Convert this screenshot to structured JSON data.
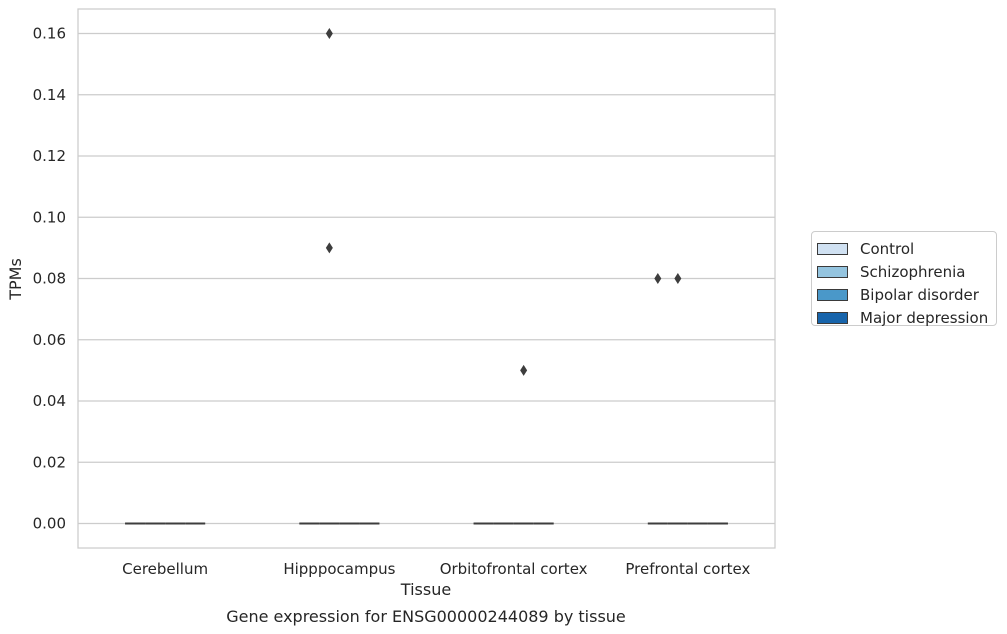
{
  "chart_data": {
    "type": "box",
    "title": "Gene expression for ENSG00000244089 by tissue",
    "xlabel": "Tissue",
    "ylabel": "TPMs",
    "ylim": [
      -0.008,
      0.168
    ],
    "yticks": [
      0.0,
      0.02,
      0.04,
      0.06,
      0.08,
      0.1,
      0.12,
      0.14,
      0.16
    ],
    "ytick_labels": [
      "0.00",
      "0.02",
      "0.04",
      "0.06",
      "0.08",
      "0.10",
      "0.12",
      "0.14",
      "0.16"
    ],
    "categories": [
      "Cerebellum",
      "Hipppocampus",
      "Orbitofrontal cortex",
      "Prefrontal cortex"
    ],
    "grid": true,
    "legend_position": "right",
    "series": [
      {
        "name": "Control",
        "color": "#d0e1f2",
        "boxes": [
          {
            "median": 0,
            "outliers": []
          },
          {
            "median": 0,
            "outliers": []
          },
          {
            "median": 0,
            "outliers": []
          },
          {
            "median": 0,
            "outliers": [
              0.08
            ]
          }
        ]
      },
      {
        "name": "Schizophrenia",
        "color": "#94c4df",
        "boxes": [
          {
            "median": 0,
            "outliers": []
          },
          {
            "median": 0,
            "outliers": [
              0.16,
              0.09
            ]
          },
          {
            "median": 0,
            "outliers": []
          },
          {
            "median": 0,
            "outliers": [
              0.08
            ]
          }
        ]
      },
      {
        "name": "Bipolar disorder",
        "color": "#4a98c9",
        "boxes": [
          {
            "median": 0,
            "outliers": []
          },
          {
            "median": 0,
            "outliers": []
          },
          {
            "median": 0,
            "outliers": [
              0.05
            ]
          },
          {
            "median": 0,
            "outliers": []
          }
        ]
      },
      {
        "name": "Major depression",
        "color": "#1764ab",
        "boxes": [
          {
            "median": 0,
            "outliers": []
          },
          {
            "median": 0,
            "outliers": []
          },
          {
            "median": 0,
            "outliers": []
          },
          {
            "median": 0,
            "outliers": []
          }
        ]
      }
    ]
  }
}
